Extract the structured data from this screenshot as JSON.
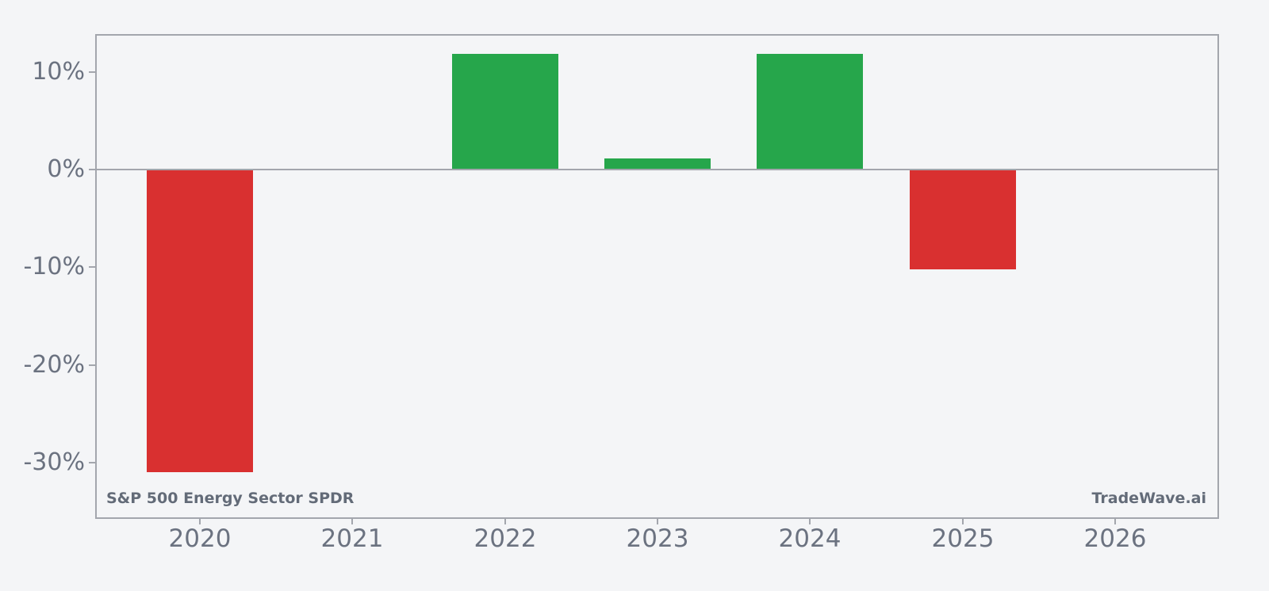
{
  "page": {
    "background": "#f4f5f7"
  },
  "chart_data": {
    "type": "bar",
    "title": "",
    "categories": [
      "2020",
      "2021",
      "2022",
      "2023",
      "2024",
      "2025",
      "2026"
    ],
    "values": [
      -31.0,
      0,
      11.8,
      1.1,
      11.8,
      -10.2,
      0
    ],
    "series_name": "Yearly return",
    "value_format": "percent",
    "xlabel": "",
    "ylabel": "",
    "ylim": [
      -35.6,
      13.7
    ],
    "grid": false,
    "legend_position": "none",
    "yticks": [
      {
        "value": 10,
        "label": "10%"
      },
      {
        "value": 0,
        "label": "0%"
      },
      {
        "value": -10,
        "label": "-10%"
      },
      {
        "value": -20,
        "label": "-20%"
      },
      {
        "value": -30,
        "label": "-30%"
      }
    ],
    "footer_left": "S&P 500 Energy Sector SPDR",
    "footer_right": "TradeWave.ai",
    "colors": {
      "positive_bar": "#26a64b",
      "negative_bar": "#d93030",
      "axis_border": "#a3a6ad",
      "zero_line": "#a3a6ad",
      "tick_text": "#6b7280",
      "footer_text": "#636b78",
      "background": "#f4f5f7"
    }
  }
}
